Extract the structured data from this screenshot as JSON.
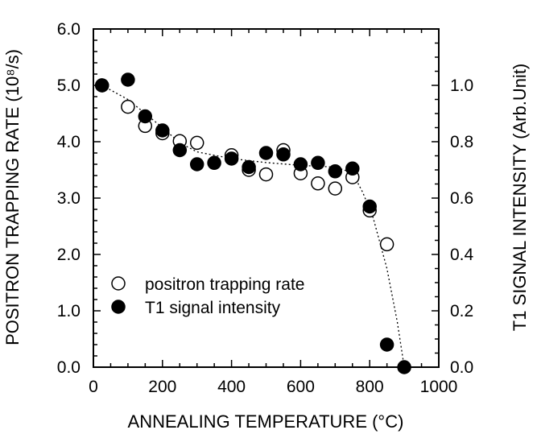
{
  "chart_data": {
    "type": "scatter",
    "xlabel": "ANNEALING TEMPERATURE (°C)",
    "ylabel": "POSITRON TRAPPING RATE (10⁸/s)",
    "y2label": "T1 SIGNAL INTENSITY (Arb.Unit)",
    "xlim": [
      0,
      1000
    ],
    "ylim": [
      0,
      6.0
    ],
    "y2lim": [
      0,
      1.2
    ],
    "x_ticks": [
      "0",
      "200",
      "400",
      "600",
      "800",
      "1000"
    ],
    "y_ticks": [
      "0.0",
      "1.0",
      "2.0",
      "3.0",
      "4.0",
      "5.0",
      "6.0"
    ],
    "y2_ticks": [
      "0.0",
      "0.2",
      "0.4",
      "0.6",
      "0.8",
      "1.0"
    ],
    "grid": false,
    "legend_position": "bottom-left",
    "series": [
      {
        "name": "positron trapping rate",
        "marker": "open-circle",
        "axis": "left",
        "x": [
          25,
          100,
          150,
          200,
          250,
          300,
          400,
          450,
          500,
          550,
          600,
          650,
          700,
          750,
          800,
          850
        ],
        "y": [
          5.0,
          4.62,
          4.28,
          4.15,
          4.01,
          3.98,
          3.76,
          3.5,
          3.42,
          3.85,
          3.44,
          3.26,
          3.17,
          3.37,
          2.78,
          2.18
        ]
      },
      {
        "name": "T1 signal intensity",
        "marker": "filled-circle",
        "axis": "right",
        "x": [
          25,
          100,
          150,
          200,
          250,
          300,
          350,
          400,
          450,
          500,
          550,
          600,
          650,
          700,
          750,
          800,
          850,
          900
        ],
        "y": [
          1.0,
          1.02,
          0.89,
          0.84,
          0.77,
          0.72,
          0.725,
          0.74,
          0.71,
          0.76,
          0.755,
          0.72,
          0.725,
          0.695,
          0.705,
          0.57,
          0.08,
          0.0
        ]
      }
    ],
    "trend_line": {
      "style": "dotted",
      "x": [
        25,
        100,
        200,
        250,
        300,
        400,
        500,
        600,
        700,
        750,
        780,
        810,
        850,
        880,
        900
      ],
      "y": [
        5.0,
        4.75,
        4.25,
        3.98,
        3.82,
        3.7,
        3.63,
        3.58,
        3.55,
        3.45,
        3.1,
        2.65,
        1.75,
        0.8,
        0.0
      ]
    }
  }
}
